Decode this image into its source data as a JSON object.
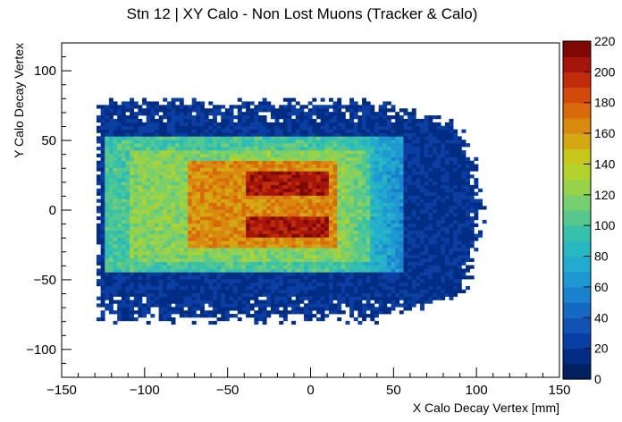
{
  "chart_data": {
    "type": "heatmap",
    "title": "Stn 12 | XY Calo - Non Lost Muons (Tracker & Calo)",
    "xlabel": "X Calo Decay Vertex [mm]",
    "ylabel": "Y Calo Decay Vertex",
    "xlim": [
      -150,
      150
    ],
    "ylim": [
      -120,
      120
    ],
    "x_ticks": [
      -150,
      -100,
      -50,
      0,
      50,
      100,
      150
    ],
    "x_tick_labels": [
      "−150",
      "−100",
      "−50",
      "0",
      "50",
      "100",
      "150"
    ],
    "y_ticks": [
      -100,
      -50,
      0,
      50,
      100
    ],
    "y_tick_labels": [
      "−100",
      "−50",
      "0",
      "50",
      "100"
    ],
    "z_range": [
      0,
      220
    ],
    "z_ticks": [
      0,
      20,
      40,
      60,
      80,
      100,
      120,
      140,
      160,
      180,
      200,
      220
    ],
    "grid": false,
    "colormap": [
      "#00205f",
      "#002c84",
      "#0b3ea3",
      "#1352b5",
      "#1569c2",
      "#1a82cc",
      "#1f98d2",
      "#22aacf",
      "#27b8c2",
      "#36c1aa",
      "#56c88e",
      "#78cf6d",
      "#97d24a",
      "#b3d22d",
      "#c8c81c",
      "#d4a812",
      "#d98a0e",
      "#d96a0c",
      "#d24a0b",
      "#c22c0a",
      "#a4150b",
      "#7d0806"
    ],
    "regions": [
      {
        "x_range": [
          -130,
          105
        ],
        "y_range": [
          -78,
          78
        ],
        "z": 10,
        "note": "sparse outer halo"
      },
      {
        "x_range": [
          -125,
          55
        ],
        "y_range": [
          -45,
          52
        ],
        "z": 100
      },
      {
        "x_range": [
          -110,
          35
        ],
        "y_range": [
          -38,
          44
        ],
        "z": 120
      },
      {
        "x_range": [
          -75,
          15
        ],
        "y_range": [
          -28,
          36
        ],
        "z": 165
      },
      {
        "x_range": [
          -40,
          10
        ],
        "y_range": [
          10,
          28
        ],
        "z": 205
      },
      {
        "x_range": [
          -40,
          10
        ],
        "y_range": [
          -20,
          -5
        ],
        "z": 205
      }
    ]
  }
}
